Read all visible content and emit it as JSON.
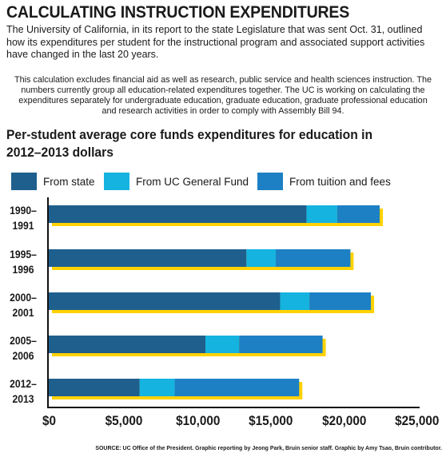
{
  "headline": "CALCULATING INSTRUCTION EXPENDITURES",
  "intro": "The University of California, in its report to the state Legislature that was sent Oct. 31, outlined how its expenditures per student for the instructional program and associated support activities have changed in the last 20 years.",
  "note": "This calculation excludes financial aid as well as research, public service and health sciences instruction. The numbers currently group all education-related expenditures together. The UC is working on calculating the expenditures separately for undergraduate education, graduate education, graduate professional education and research activities in order to comply with Assembly Bill 94.",
  "source": "SOURCE: UC Office of the President. Graphic reporting by Jeong Park, Bruin senior staff. Graphic by Amy Tsao, Bruin contributor.",
  "colors": {
    "from_state": "#1f5f8d",
    "from_uc_general_fund": "#14b3e0",
    "from_tuition_and_fees": "#1d80c4",
    "total_shadow": "#ffd200",
    "axis": "#111111"
  },
  "chart_data": {
    "type": "bar",
    "orientation": "horizontal",
    "stacked": true,
    "title": "Per-student average core funds expenditures for education in 2012–2013 dollars",
    "categories": [
      "1990–1991",
      "1995–1996",
      "2000–2001",
      "2005–2006",
      "2012–2013"
    ],
    "series": [
      {
        "name": "From state",
        "values": [
          17600,
          13500,
          15800,
          10700,
          6200
        ]
      },
      {
        "name": "From UC General Fund",
        "values": [
          2100,
          2000,
          2000,
          2300,
          2400
        ]
      },
      {
        "name": "From tuition and fees",
        "values": [
          2900,
          5100,
          4200,
          5700,
          8500
        ]
      }
    ],
    "xlim": [
      0,
      25000
    ],
    "xticks": [
      0,
      5000,
      10000,
      15000,
      20000,
      25000
    ],
    "xtick_labels": [
      "$0",
      "$5,000",
      "$10,000",
      "$15,000",
      "$20,000",
      "$25,000"
    ],
    "legend_position": "top",
    "grid": false
  }
}
